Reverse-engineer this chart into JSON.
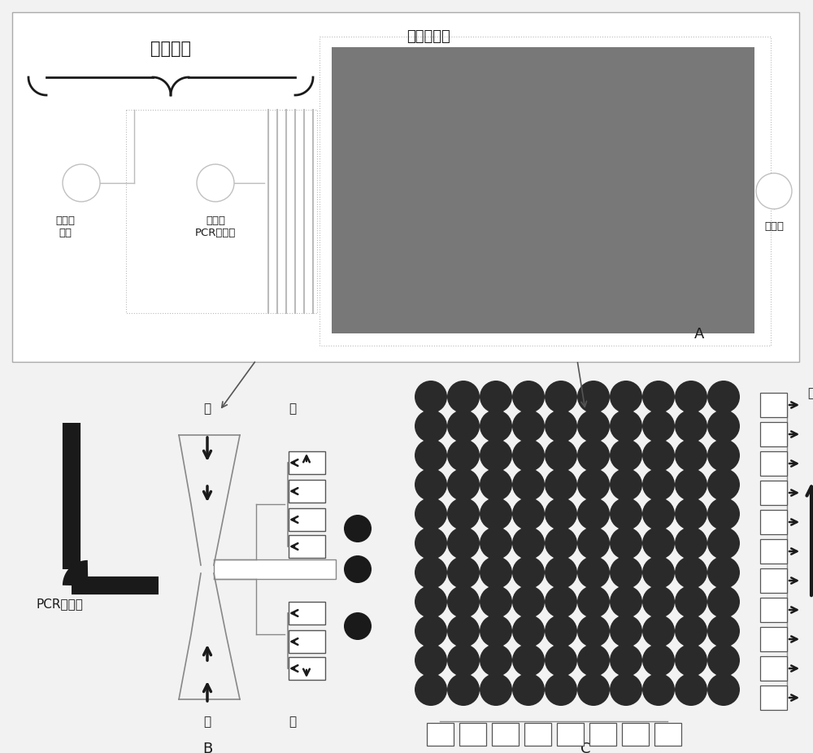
{
  "bg_color": "#f2f2f2",
  "panel_A_bg": "#ffffff",
  "collection_fill": "#787878",
  "circle_fill": "#2a2a2a",
  "dark_line": "#1a1a1a",
  "gray_line": "#aaaaaa",
  "medium_gray": "#888888",
  "text_color": "#1a1a1a",
  "title_A_label": "乳滴收集区",
  "label_A": "A",
  "label_B": "B",
  "label_C": "C",
  "brace_text": "乳滴生成",
  "inlet_oil_line1": "进样口",
  "inlet_oil_line2": "油相",
  "inlet_pcr_line1": "进样口",
  "inlet_pcr_line2": "PCR混合液",
  "outlet_text": "出样口",
  "pcr_mix_text": "PCR混合液",
  "oil_text": "油"
}
